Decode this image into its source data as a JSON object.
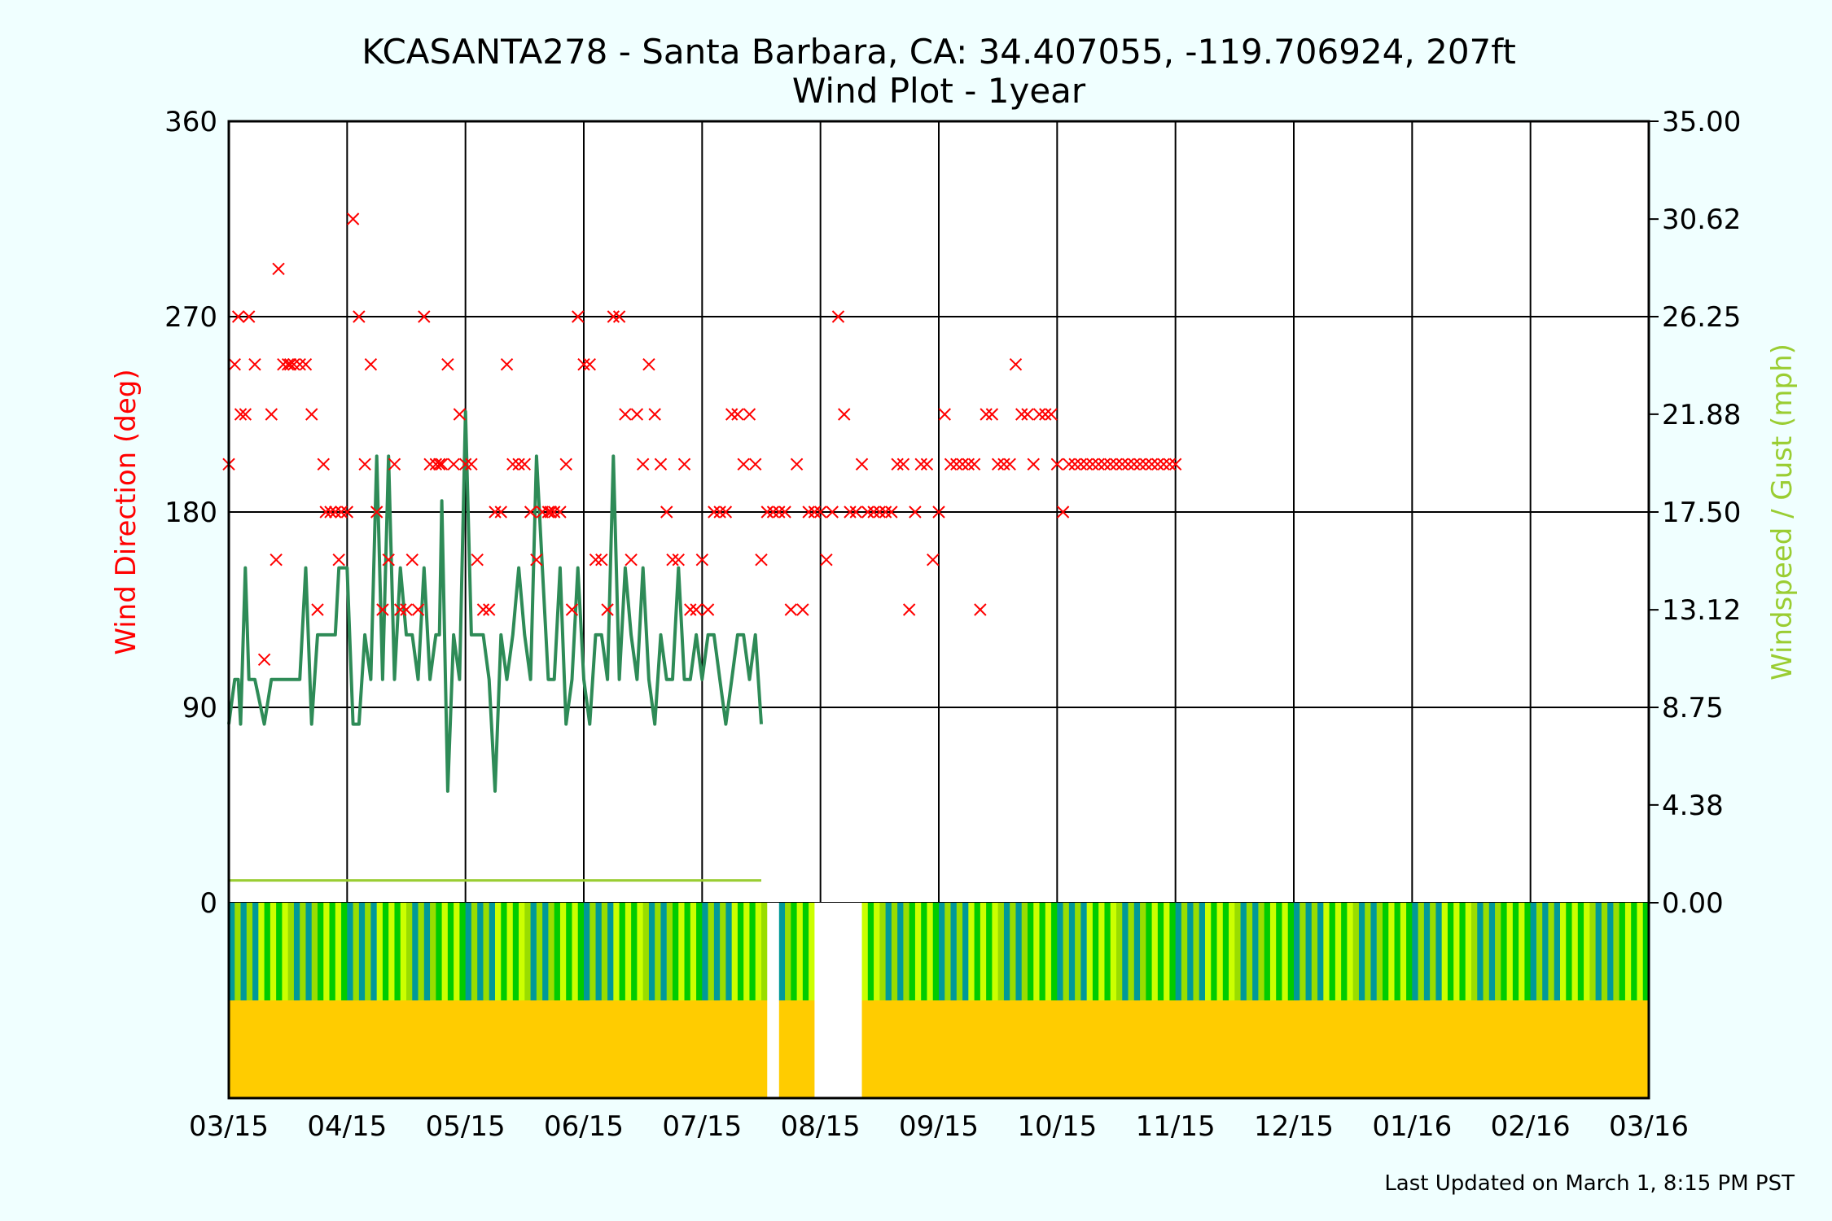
{
  "chart_data": {
    "type": "line",
    "title": "KCASANTA278 - Santa Barbara, CA: 34.407055, -119.706924, 207ft",
    "subtitle": "Wind Plot - 1year",
    "ylabel_left": "Wind Direction (deg)",
    "ylabel_right": "Windspeed / Gust (mph)",
    "footer": "Last Updated on March 1, 8:15 PM PST",
    "colors": {
      "direction": "#ff0000",
      "gust": "#2e8b57",
      "windspeed": "#9acd32",
      "band_top": [
        "#009999",
        "#00cc00",
        "#99dd00",
        "#ccff00"
      ],
      "band_bottom": [
        "#ffcc00",
        "#ffff00",
        "#ffee00"
      ]
    },
    "x_ticks": [
      "03/15",
      "04/15",
      "05/15",
      "06/15",
      "07/15",
      "08/15",
      "09/15",
      "10/15",
      "11/15",
      "12/15",
      "01/16",
      "02/16",
      "03/16"
    ],
    "left_axis": {
      "ticks": [
        "0",
        "90",
        "180",
        "270",
        "360"
      ],
      "ylim": [
        0,
        360
      ]
    },
    "right_axis": {
      "ticks": [
        "0.00",
        "4.38",
        "8.75",
        "13.12",
        "17.50",
        "21.88",
        "26.25",
        "30.62",
        "35.00"
      ],
      "ylim": [
        0,
        35
      ]
    },
    "grid": true,
    "x_range_months": [
      0,
      12
    ],
    "gaps": [
      [
        4.55,
        4.65
      ],
      [
        4.95,
        5.35
      ]
    ],
    "direction": [
      [
        0.0,
        202
      ],
      [
        0.05,
        248
      ],
      [
        0.08,
        270
      ],
      [
        0.1,
        225
      ],
      [
        0.14,
        225
      ],
      [
        0.17,
        270
      ],
      [
        0.22,
        248
      ],
      [
        0.3,
        112
      ],
      [
        0.36,
        225
      ],
      [
        0.4,
        158
      ],
      [
        0.42,
        292
      ],
      [
        0.46,
        248
      ],
      [
        0.5,
        248
      ],
      [
        0.52,
        248
      ],
      [
        0.55,
        248
      ],
      [
        0.6,
        248
      ],
      [
        0.65,
        248
      ],
      [
        0.7,
        225
      ],
      [
        0.75,
        135
      ],
      [
        0.8,
        202
      ],
      [
        0.82,
        180
      ],
      [
        0.86,
        180
      ],
      [
        0.9,
        180
      ],
      [
        0.93,
        158
      ],
      [
        0.95,
        180
      ],
      [
        1.0,
        180
      ],
      [
        1.05,
        315
      ],
      [
        1.1,
        270
      ],
      [
        1.15,
        202
      ],
      [
        1.2,
        248
      ],
      [
        1.25,
        180
      ],
      [
        1.3,
        135
      ],
      [
        1.35,
        158
      ],
      [
        1.4,
        202
      ],
      [
        1.45,
        135
      ],
      [
        1.5,
        135
      ],
      [
        1.55,
        158
      ],
      [
        1.6,
        135
      ],
      [
        1.65,
        270
      ],
      [
        1.7,
        202
      ],
      [
        1.75,
        202
      ],
      [
        1.78,
        202
      ],
      [
        1.8,
        202
      ],
      [
        1.85,
        248
      ],
      [
        1.9,
        202
      ],
      [
        1.95,
        225
      ],
      [
        2.0,
        202
      ],
      [
        2.05,
        202
      ],
      [
        2.1,
        158
      ],
      [
        2.15,
        135
      ],
      [
        2.2,
        135
      ],
      [
        2.25,
        180
      ],
      [
        2.3,
        180
      ],
      [
        2.35,
        248
      ],
      [
        2.4,
        202
      ],
      [
        2.45,
        202
      ],
      [
        2.5,
        202
      ],
      [
        2.55,
        180
      ],
      [
        2.6,
        158
      ],
      [
        2.65,
        180
      ],
      [
        2.7,
        180
      ],
      [
        2.72,
        180
      ],
      [
        2.75,
        180
      ],
      [
        2.8,
        180
      ],
      [
        2.85,
        202
      ],
      [
        2.9,
        135
      ],
      [
        2.95,
        270
      ],
      [
        3.0,
        248
      ],
      [
        3.05,
        248
      ],
      [
        3.1,
        158
      ],
      [
        3.15,
        158
      ],
      [
        3.2,
        135
      ],
      [
        3.25,
        270
      ],
      [
        3.3,
        270
      ],
      [
        3.35,
        225
      ],
      [
        3.4,
        158
      ],
      [
        3.45,
        225
      ],
      [
        3.5,
        202
      ],
      [
        3.55,
        248
      ],
      [
        3.6,
        225
      ],
      [
        3.65,
        202
      ],
      [
        3.7,
        180
      ],
      [
        3.75,
        158
      ],
      [
        3.8,
        158
      ],
      [
        3.85,
        202
      ],
      [
        3.9,
        135
      ],
      [
        3.95,
        135
      ],
      [
        4.0,
        158
      ],
      [
        4.05,
        135
      ],
      [
        4.1,
        180
      ],
      [
        4.15,
        180
      ],
      [
        4.2,
        180
      ],
      [
        4.25,
        225
      ],
      [
        4.3,
        225
      ],
      [
        4.35,
        202
      ],
      [
        4.4,
        225
      ],
      [
        4.45,
        202
      ],
      [
        4.5,
        158
      ],
      [
        4.55,
        180
      ],
      [
        4.6,
        180
      ],
      [
        4.65,
        180
      ],
      [
        4.7,
        180
      ],
      [
        4.75,
        135
      ],
      [
        4.8,
        202
      ],
      [
        4.85,
        135
      ],
      [
        4.9,
        180
      ],
      [
        4.95,
        180
      ],
      [
        5.0,
        180
      ],
      [
        5.05,
        158
      ],
      [
        5.1,
        180
      ],
      [
        5.15,
        270
      ],
      [
        5.2,
        225
      ],
      [
        5.25,
        180
      ],
      [
        5.3,
        180
      ],
      [
        5.35,
        202
      ],
      [
        5.4,
        180
      ],
      [
        5.45,
        180
      ],
      [
        5.5,
        180
      ],
      [
        5.55,
        180
      ],
      [
        5.6,
        180
      ],
      [
        5.65,
        202
      ],
      [
        5.7,
        202
      ],
      [
        5.75,
        135
      ],
      [
        5.8,
        180
      ],
      [
        5.85,
        202
      ],
      [
        5.9,
        202
      ],
      [
        5.95,
        158
      ],
      [
        6.0,
        180
      ],
      [
        6.05,
        225
      ],
      [
        6.1,
        202
      ],
      [
        6.15,
        202
      ],
      [
        6.2,
        202
      ],
      [
        6.25,
        202
      ],
      [
        6.3,
        202
      ],
      [
        6.35,
        135
      ],
      [
        6.4,
        225
      ],
      [
        6.45,
        225
      ],
      [
        6.5,
        202
      ],
      [
        6.55,
        202
      ],
      [
        6.6,
        202
      ],
      [
        6.65,
        248
      ],
      [
        6.7,
        225
      ],
      [
        6.75,
        225
      ],
      [
        6.8,
        202
      ],
      [
        6.85,
        225
      ],
      [
        6.9,
        225
      ],
      [
        6.95,
        225
      ],
      [
        7.0,
        202
      ],
      [
        7.05,
        180
      ],
      [
        7.1,
        202
      ],
      [
        7.15,
        202
      ],
      [
        7.2,
        202
      ],
      [
        7.25,
        202
      ],
      [
        7.3,
        202
      ],
      [
        7.35,
        202
      ],
      [
        7.4,
        202
      ],
      [
        7.45,
        202
      ],
      [
        7.5,
        202
      ],
      [
        7.55,
        202
      ],
      [
        7.6,
        202
      ],
      [
        7.65,
        202
      ],
      [
        7.7,
        202
      ],
      [
        7.75,
        202
      ],
      [
        7.8,
        202
      ],
      [
        7.85,
        202
      ],
      [
        7.9,
        202
      ],
      [
        7.95,
        202
      ],
      [
        8.0,
        202
      ]
    ],
    "gust": [
      [
        0.0,
        8
      ],
      [
        0.05,
        10
      ],
      [
        0.08,
        10
      ],
      [
        0.1,
        8
      ],
      [
        0.14,
        15
      ],
      [
        0.17,
        10
      ],
      [
        0.22,
        10
      ],
      [
        0.3,
        8
      ],
      [
        0.36,
        10
      ],
      [
        0.4,
        10
      ],
      [
        0.42,
        10
      ],
      [
        0.46,
        10
      ],
      [
        0.5,
        10
      ],
      [
        0.52,
        10
      ],
      [
        0.55,
        10
      ],
      [
        0.6,
        10
      ],
      [
        0.65,
        15
      ],
      [
        0.7,
        8
      ],
      [
        0.75,
        12
      ],
      [
        0.8,
        12
      ],
      [
        0.82,
        12
      ],
      [
        0.86,
        12
      ],
      [
        0.9,
        12
      ],
      [
        0.93,
        15
      ],
      [
        0.95,
        15
      ],
      [
        1.0,
        15
      ],
      [
        1.05,
        8
      ],
      [
        1.1,
        8
      ],
      [
        1.15,
        12
      ],
      [
        1.2,
        10
      ],
      [
        1.25,
        20
      ],
      [
        1.3,
        10
      ],
      [
        1.35,
        20
      ],
      [
        1.4,
        10
      ],
      [
        1.45,
        15
      ],
      [
        1.5,
        12
      ],
      [
        1.55,
        12
      ],
      [
        1.6,
        10
      ],
      [
        1.65,
        15
      ],
      [
        1.7,
        10
      ],
      [
        1.75,
        12
      ],
      [
        1.78,
        12
      ],
      [
        1.8,
        18
      ],
      [
        1.85,
        5
      ],
      [
        1.9,
        12
      ],
      [
        1.95,
        10
      ],
      [
        2.0,
        22
      ],
      [
        2.05,
        12
      ],
      [
        2.1,
        12
      ],
      [
        2.15,
        12
      ],
      [
        2.2,
        10
      ],
      [
        2.25,
        5
      ],
      [
        2.3,
        12
      ],
      [
        2.35,
        10
      ],
      [
        2.4,
        12
      ],
      [
        2.45,
        15
      ],
      [
        2.5,
        12
      ],
      [
        2.55,
        10
      ],
      [
        2.6,
        20
      ],
      [
        2.65,
        15
      ],
      [
        2.7,
        10
      ],
      [
        2.72,
        10
      ],
      [
        2.75,
        10
      ],
      [
        2.8,
        15
      ],
      [
        2.85,
        8
      ],
      [
        2.9,
        10
      ],
      [
        2.95,
        15
      ],
      [
        3.0,
        10
      ],
      [
        3.05,
        8
      ],
      [
        3.1,
        12
      ],
      [
        3.15,
        12
      ],
      [
        3.2,
        10
      ],
      [
        3.25,
        20
      ],
      [
        3.3,
        10
      ],
      [
        3.35,
        15
      ],
      [
        3.4,
        12
      ],
      [
        3.45,
        10
      ],
      [
        3.5,
        15
      ],
      [
        3.55,
        10
      ],
      [
        3.6,
        8
      ],
      [
        3.65,
        12
      ],
      [
        3.7,
        10
      ],
      [
        3.75,
        10
      ],
      [
        3.8,
        15
      ],
      [
        3.85,
        10
      ],
      [
        3.9,
        10
      ],
      [
        3.95,
        12
      ],
      [
        4.0,
        10
      ],
      [
        4.05,
        12
      ],
      [
        4.1,
        12
      ],
      [
        4.15,
        10
      ],
      [
        4.2,
        8
      ],
      [
        4.25,
        10
      ],
      [
        4.3,
        12
      ],
      [
        4.35,
        12
      ],
      [
        4.4,
        10
      ],
      [
        4.45,
        12
      ],
      [
        4.5,
        8
      ]
    ],
    "windspeed": [
      [
        0.0,
        1
      ],
      [
        0.05,
        1
      ],
      [
        0.08,
        1
      ],
      [
        0.1,
        1
      ],
      [
        0.14,
        1
      ],
      [
        0.17,
        1
      ],
      [
        0.22,
        1
      ],
      [
        0.3,
        1
      ],
      [
        0.36,
        1
      ],
      [
        0.4,
        1
      ],
      [
        0.42,
        1
      ],
      [
        0.46,
        1
      ],
      [
        0.5,
        1
      ],
      [
        0.52,
        1
      ],
      [
        0.55,
        1
      ],
      [
        0.6,
        1
      ],
      [
        0.65,
        1
      ],
      [
        0.7,
        1
      ],
      [
        0.75,
        1
      ],
      [
        0.8,
        1
      ],
      [
        0.82,
        1
      ],
      [
        0.86,
        1
      ],
      [
        0.9,
        1
      ],
      [
        0.93,
        1
      ],
      [
        0.95,
        1
      ],
      [
        1.0,
        1
      ],
      [
        1.05,
        1
      ],
      [
        1.1,
        1
      ],
      [
        1.15,
        1
      ],
      [
        1.2,
        1
      ],
      [
        1.25,
        1
      ],
      [
        1.3,
        1
      ],
      [
        1.35,
        1
      ],
      [
        1.4,
        1
      ],
      [
        1.45,
        1
      ],
      [
        1.5,
        1
      ],
      [
        1.55,
        1
      ],
      [
        1.6,
        1
      ],
      [
        1.65,
        1
      ],
      [
        1.7,
        1
      ],
      [
        1.75,
        1
      ],
      [
        1.78,
        1
      ],
      [
        1.8,
        1
      ],
      [
        1.85,
        1
      ],
      [
        1.9,
        1
      ],
      [
        1.95,
        1
      ],
      [
        2.0,
        1
      ],
      [
        2.05,
        1
      ],
      [
        2.1,
        1
      ],
      [
        2.15,
        1
      ],
      [
        2.2,
        1
      ],
      [
        2.25,
        1
      ],
      [
        2.3,
        1
      ],
      [
        2.35,
        1
      ],
      [
        2.4,
        1
      ],
      [
        2.45,
        1
      ],
      [
        2.5,
        1
      ],
      [
        2.55,
        1
      ],
      [
        2.6,
        1
      ],
      [
        2.65,
        1
      ],
      [
        2.7,
        1
      ],
      [
        2.72,
        1
      ],
      [
        2.75,
        1
      ],
      [
        2.8,
        1
      ],
      [
        2.85,
        1
      ],
      [
        2.9,
        1
      ],
      [
        2.95,
        1
      ],
      [
        3.0,
        1
      ],
      [
        3.05,
        1
      ],
      [
        3.1,
        1
      ],
      [
        3.15,
        1
      ],
      [
        3.2,
        1
      ],
      [
        3.25,
        1
      ],
      [
        3.3,
        1
      ],
      [
        3.35,
        1
      ],
      [
        3.4,
        1
      ],
      [
        3.45,
        1
      ],
      [
        3.5,
        1
      ],
      [
        3.55,
        1
      ],
      [
        3.6,
        1
      ],
      [
        3.65,
        1
      ],
      [
        3.7,
        1
      ],
      [
        3.75,
        1
      ],
      [
        3.8,
        1
      ],
      [
        3.85,
        1
      ],
      [
        3.9,
        1
      ],
      [
        3.95,
        1
      ],
      [
        4.0,
        1
      ],
      [
        4.05,
        1
      ],
      [
        4.1,
        1
      ],
      [
        4.15,
        1
      ],
      [
        4.2,
        1
      ],
      [
        4.25,
        1
      ],
      [
        4.3,
        1
      ],
      [
        4.35,
        1
      ],
      [
        4.4,
        1
      ],
      [
        4.45,
        1
      ],
      [
        4.5,
        1
      ]
    ]
  }
}
